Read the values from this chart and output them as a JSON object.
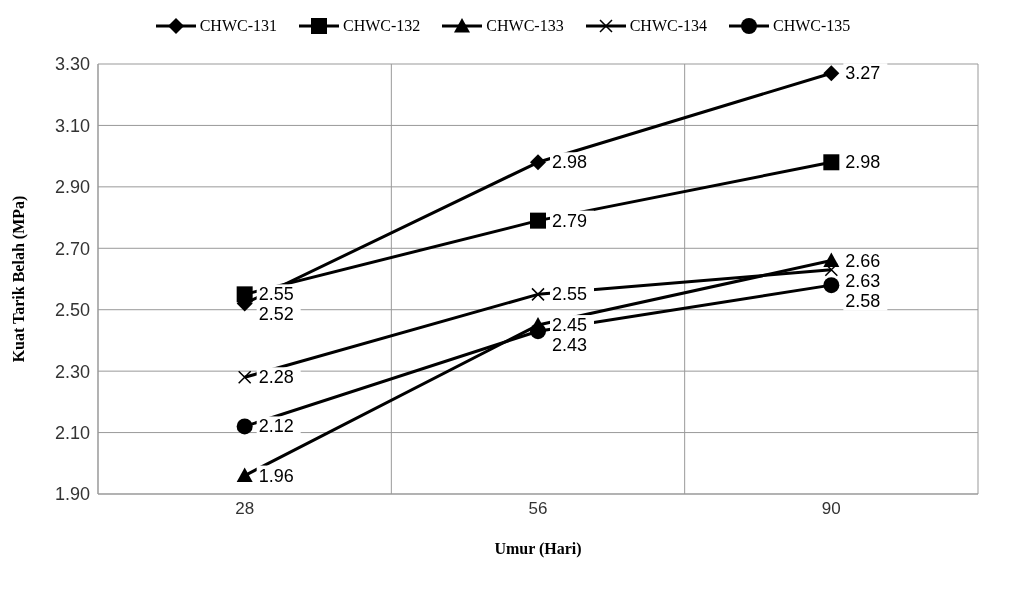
{
  "chart_data": {
    "type": "line",
    "xlabel": "Umur (Hari)",
    "ylabel": "Kuat Tarik Belah (MPa)",
    "categories": [
      "28",
      "56",
      "90"
    ],
    "ylim": [
      1.9,
      3.3
    ],
    "yticks": [
      {
        "value": 1.9,
        "label": "1.90"
      },
      {
        "value": 2.1,
        "label": "2.10"
      },
      {
        "value": 2.3,
        "label": "2.30"
      },
      {
        "value": 2.5,
        "label": "2.50"
      },
      {
        "value": 2.7,
        "label": "2.70"
      },
      {
        "value": 2.9,
        "label": "2.90"
      },
      {
        "value": 3.1,
        "label": "3.10"
      },
      {
        "value": 3.3,
        "label": "3.30"
      }
    ],
    "grid": true,
    "legend": "top",
    "data_labels": true,
    "line_style": "solid",
    "series": [
      {
        "name": "CHWC-131",
        "color": "#000000",
        "marker": "diamond",
        "values": [
          2.52,
          2.98,
          3.27
        ]
      },
      {
        "name": "CHWC-132",
        "color": "#000000",
        "marker": "square",
        "values": [
          2.55,
          2.79,
          2.98
        ]
      },
      {
        "name": "CHWC-133",
        "color": "#000000",
        "marker": "triangle",
        "values": [
          1.96,
          2.45,
          2.66
        ]
      },
      {
        "name": "CHWC-134",
        "color": "#000000",
        "marker": "cross",
        "values": [
          2.28,
          2.55,
          2.63
        ]
      },
      {
        "name": "CHWC-135",
        "color": "#000000",
        "marker": "circle",
        "values": [
          2.12,
          2.43,
          2.58
        ]
      }
    ]
  }
}
